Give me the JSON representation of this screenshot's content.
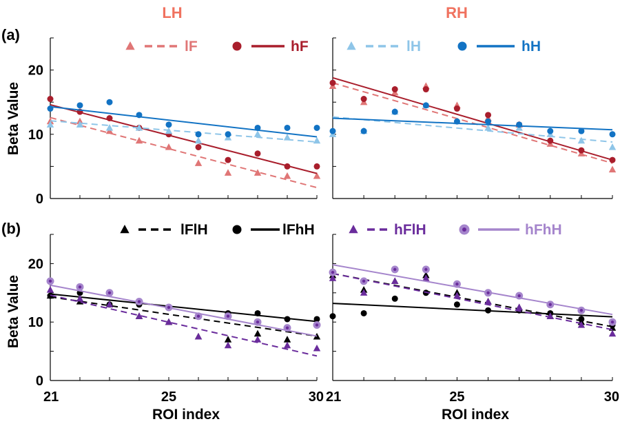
{
  "headers": {
    "left": "LH",
    "right": "RH",
    "left_color": "#f0725f",
    "right_color": "#f0725f"
  },
  "row_labels": {
    "a": "(a)",
    "b": "(b)"
  },
  "shared": {
    "ylabel": "Beta Value",
    "xlabel": "ROI index",
    "x_ticks": [
      21,
      25,
      30
    ],
    "y_ticks": [
      0,
      10,
      20
    ],
    "xlim": [
      21,
      30
    ],
    "ylim": [
      0,
      25
    ]
  },
  "chart_data": [
    {
      "type": "scatter",
      "panel": "(a) LH",
      "x": [
        21,
        22,
        23,
        24,
        25,
        26,
        27,
        28,
        29,
        30
      ],
      "ylim": [
        0,
        25
      ],
      "series": [
        {
          "name": "lF",
          "color": "#e07676",
          "marker": "triangle",
          "line": "dashed",
          "values": [
            12,
            12,
            10.5,
            9,
            8,
            5.5,
            4,
            4,
            3.5,
            3.5
          ],
          "fit": [
            12.6,
            1.7
          ]
        },
        {
          "name": "hF",
          "color": "#a91e2c",
          "marker": "circle",
          "line": "solid",
          "values": [
            15.5,
            13.5,
            12.5,
            11,
            10,
            8,
            6,
            7,
            5,
            5
          ],
          "fit": [
            14.6,
            3.9
          ]
        },
        {
          "name": "lH",
          "color": "#8ec5e8",
          "marker": "triangle",
          "line": "dashed",
          "values": [
            11.5,
            11.5,
            11,
            11,
            10.5,
            9,
            9.5,
            10,
            9.5,
            9
          ],
          "fit": [
            12.1,
            8.8
          ]
        },
        {
          "name": "hH",
          "color": "#1273c4",
          "marker": "circle",
          "line": "solid",
          "values": [
            14,
            14.5,
            15,
            13,
            11.5,
            10,
            10,
            11,
            11,
            11
          ],
          "fit": [
            14.3,
            9.6
          ]
        }
      ]
    },
    {
      "type": "scatter",
      "panel": "(a) RH",
      "x": [
        21,
        22,
        23,
        24,
        25,
        26,
        27,
        28,
        29,
        30
      ],
      "ylim": [
        0,
        25
      ],
      "series": [
        {
          "name": "lF",
          "color": "#e07676",
          "marker": "triangle",
          "line": "dashed",
          "values": [
            17.5,
            15,
            16.5,
            17.5,
            14.5,
            12.5,
            11.5,
            8.5,
            7,
            4.5
          ],
          "fit": [
            18.0,
            5.5
          ]
        },
        {
          "name": "hF",
          "color": "#a91e2c",
          "marker": "circle",
          "line": "solid",
          "values": [
            18,
            15.5,
            17,
            17,
            14,
            13,
            11.5,
            9,
            7.5,
            6
          ],
          "fit": [
            18.8,
            6.0
          ]
        },
        {
          "name": "lH",
          "color": "#8ec5e8",
          "marker": "triangle",
          "line": "dashed",
          "values": [
            10,
            10.5,
            13.5,
            14.5,
            12,
            11,
            11,
            10,
            9,
            8
          ],
          "fit": [
            12.7,
            8.8
          ]
        },
        {
          "name": "hH",
          "color": "#1273c4",
          "marker": "circle",
          "line": "solid",
          "values": [
            10.5,
            10.5,
            13.5,
            14.5,
            12,
            12,
            11.5,
            10.5,
            10.5,
            10
          ],
          "fit": [
            12.5,
            10.7
          ]
        }
      ]
    },
    {
      "type": "scatter",
      "panel": "(b) LH",
      "x": [
        21,
        22,
        23,
        24,
        25,
        26,
        27,
        28,
        29,
        30
      ],
      "ylim": [
        0,
        25
      ],
      "series": [
        {
          "name": "lFlH",
          "color": "#000000",
          "marker": "triangle",
          "line": "dashed",
          "values": [
            14.5,
            13.5,
            13,
            11,
            10,
            7.5,
            7,
            8,
            7,
            7.5
          ],
          "fit": [
            14.3,
            7.6
          ]
        },
        {
          "name": "lFhH",
          "color": "#000000",
          "marker": "circle",
          "line": "solid",
          "values": [
            14.5,
            15,
            13,
            13,
            12.5,
            11,
            11.5,
            11.5,
            10.5,
            10.5
          ],
          "fit": [
            14.8,
            10.1
          ]
        },
        {
          "name": "hFlH",
          "color": "#6a2c9c",
          "marker": "triangle",
          "line": "dashed",
          "values": [
            15.5,
            14,
            13,
            11,
            10,
            7.5,
            6,
            7,
            6,
            5.5
          ],
          "fit": [
            14.6,
            4.2
          ]
        },
        {
          "name": "hFhH",
          "color": "#a585cc",
          "marker": "ringed-circle",
          "line": "solid",
          "values": [
            17,
            16,
            15,
            13.5,
            12.5,
            11,
            11,
            10,
            9,
            9.5
          ],
          "fit": [
            16.3,
            7.6
          ]
        }
      ]
    },
    {
      "type": "scatter",
      "panel": "(b) RH",
      "x": [
        21,
        22,
        23,
        24,
        25,
        26,
        27,
        28,
        29,
        30
      ],
      "ylim": [
        0,
        25
      ],
      "series": [
        {
          "name": "lFlH",
          "color": "#000000",
          "marker": "triangle",
          "line": "dashed",
          "values": [
            18,
            15.5,
            17,
            18,
            15,
            13.5,
            12.5,
            11,
            10,
            9
          ],
          "fit": [
            18.3,
            9.2
          ]
        },
        {
          "name": "lFhH",
          "color": "#000000",
          "marker": "circle",
          "line": "solid",
          "values": [
            11,
            11.5,
            14,
            15,
            13,
            12,
            12,
            11.5,
            10.5,
            9.5
          ],
          "fit": [
            13.2,
            10.9
          ]
        },
        {
          "name": "hFlH",
          "color": "#6a2c9c",
          "marker": "triangle",
          "line": "dashed",
          "values": [
            17.5,
            15,
            17,
            17.5,
            14.5,
            13.5,
            12.5,
            11,
            9.5,
            8
          ],
          "fit": [
            18.3,
            8.7
          ]
        },
        {
          "name": "hFhH",
          "color": "#a585cc",
          "marker": "ringed-circle",
          "line": "solid",
          "values": [
            18.5,
            17,
            19,
            19,
            16.5,
            15,
            14.5,
            13,
            12,
            10
          ],
          "fit": [
            19.8,
            11.3
          ]
        }
      ]
    }
  ],
  "legends": {
    "a_left": [
      "lF",
      "hF"
    ],
    "a_right": [
      "lH",
      "hH"
    ],
    "b_left": [
      "lFlH",
      "lFhH"
    ],
    "b_right": [
      "hFlH",
      "hFhH"
    ]
  }
}
